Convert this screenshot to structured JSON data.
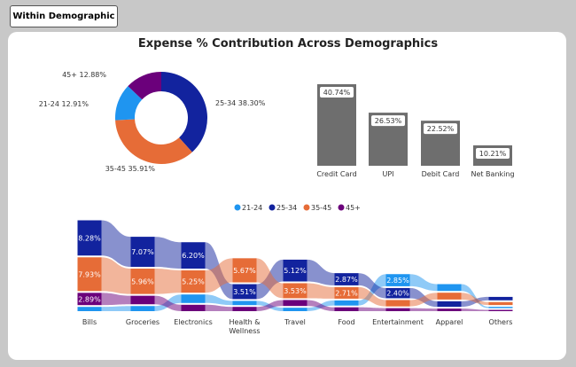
{
  "tab_button": "Within Demographic",
  "title": "Expense % Contribution Across Demographics",
  "colors": {
    "21-24": "#1f95f0",
    "25-34": "#12239e",
    "35-45": "#e66c37",
    "45+": "#6b007b",
    "bar": "#6e6e6e"
  },
  "chart_data": [
    {
      "type": "pie",
      "style": "donut",
      "slices": [
        {
          "label": "25-34",
          "value": 38.3,
          "text": "25-34 38.30%"
        },
        {
          "label": "35-45",
          "value": 35.91,
          "text": "35-45 35.91%"
        },
        {
          "label": "21-24",
          "value": 12.91,
          "text": "21-24 12.91%"
        },
        {
          "label": "45+",
          "value": 12.88,
          "text": "45+ 12.88%"
        }
      ]
    },
    {
      "type": "bar",
      "categories": [
        "Credit Card",
        "UPI",
        "Debit Card",
        "Net Banking"
      ],
      "values": [
        40.74,
        26.53,
        22.52,
        10.21
      ],
      "labels": [
        "40.74%",
        "26.53%",
        "22.52%",
        "10.21%"
      ]
    },
    {
      "type": "ribbon",
      "legend": [
        "21-24",
        "25-34",
        "35-45",
        "45+"
      ],
      "legend_position": "top-center",
      "categories": [
        "Bills",
        "Groceries",
        "Electronics",
        "Health & Wellness",
        "Travel",
        "Food",
        "Entertainment",
        "Apparel",
        "Others"
      ],
      "series": [
        {
          "name": "21-24",
          "values": [
            1.0,
            1.2,
            2.0,
            1.0,
            0.8,
            1.2,
            2.85,
            1.6,
            0.3
          ]
        },
        {
          "name": "25-34",
          "values": [
            8.28,
            7.07,
            6.2,
            3.51,
            5.12,
            2.87,
            2.4,
            1.3,
            0.8
          ]
        },
        {
          "name": "35-45",
          "values": [
            7.93,
            5.96,
            5.25,
            5.67,
            3.53,
            2.71,
            1.5,
            1.6,
            0.7
          ]
        },
        {
          "name": "45+",
          "values": [
            2.89,
            2.0,
            1.5,
            1.0,
            1.4,
            0.9,
            0.7,
            0.6,
            0.3
          ]
        }
      ]
    }
  ]
}
